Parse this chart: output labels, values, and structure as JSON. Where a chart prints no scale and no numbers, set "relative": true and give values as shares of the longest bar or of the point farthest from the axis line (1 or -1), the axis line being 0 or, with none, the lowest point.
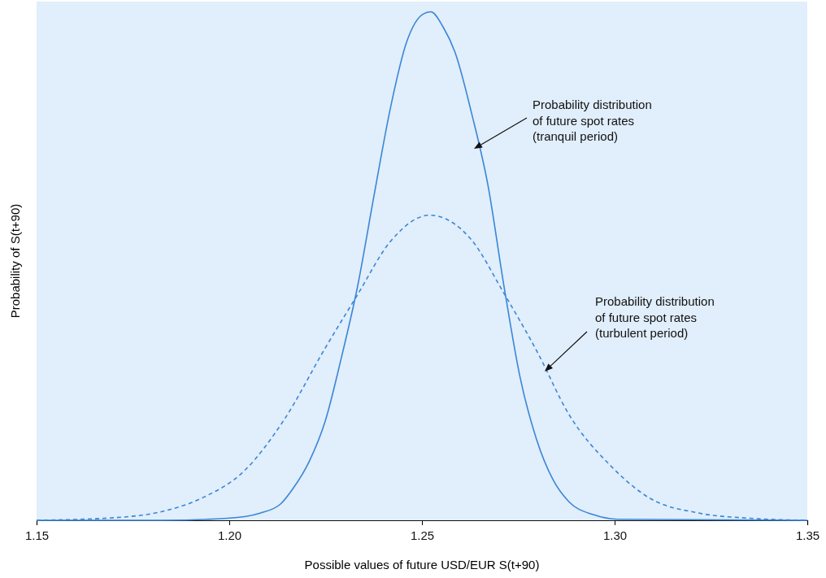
{
  "chart_data": {
    "type": "line",
    "relative": true,
    "xlabel": "Possible values of future USD/EUR S(t+90)",
    "ylabel": "Probability of S(t+90)",
    "xlim": [
      1.15,
      1.35
    ],
    "xticks": [
      {
        "value": 1.15,
        "label": "1.15"
      },
      {
        "value": 1.2,
        "label": "1.20"
      },
      {
        "value": 1.25,
        "label": "1.25"
      },
      {
        "value": 1.3,
        "label": "1.30"
      },
      {
        "value": 1.35,
        "label": "1.35"
      }
    ],
    "series": [
      {
        "color": "#3a86d6",
        "line_style": "solid",
        "x": [
          1.15,
          1.183,
          1.1996,
          1.208,
          1.2133,
          1.2165,
          1.2207,
          1.2249,
          1.2291,
          1.2333,
          1.2376,
          1.2418,
          1.246,
          1.2502,
          1.2523,
          1.2555,
          1.2586,
          1.2629,
          1.2671,
          1.2713,
          1.2755,
          1.2797,
          1.284,
          1.2882,
          1.2945,
          1.3008,
          1.35
        ],
        "values": [
          0,
          0,
          0.004,
          0.014,
          0.032,
          0.062,
          0.115,
          0.195,
          0.32,
          0.46,
          0.64,
          0.81,
          0.94,
          0.995,
          1,
          0.97,
          0.92,
          0.8,
          0.66,
          0.46,
          0.28,
          0.16,
          0.08,
          0.036,
          0.011,
          0.002,
          0
        ]
      },
      {
        "color": "#3a86d6",
        "line_style": "dashed",
        "x": [
          1.15,
          1.17,
          1.183,
          1.193,
          1.204,
          1.214,
          1.225,
          1.233,
          1.242,
          1.252,
          1.263,
          1.271,
          1.28,
          1.288,
          1.299,
          1.309,
          1.322,
          1.335,
          1.35
        ],
        "values": [
          0,
          0.005,
          0.018,
          0.044,
          0.098,
          0.195,
          0.34,
          0.44,
          0.55,
          0.6,
          0.55,
          0.45,
          0.33,
          0.21,
          0.107,
          0.044,
          0.014,
          0.004,
          0
        ]
      }
    ],
    "annotations": [
      "Probability distribution\nof future spot rates\n(tranquil period)",
      "Probability distribution\nof future spot rates\n(turbulent period)"
    ]
  }
}
